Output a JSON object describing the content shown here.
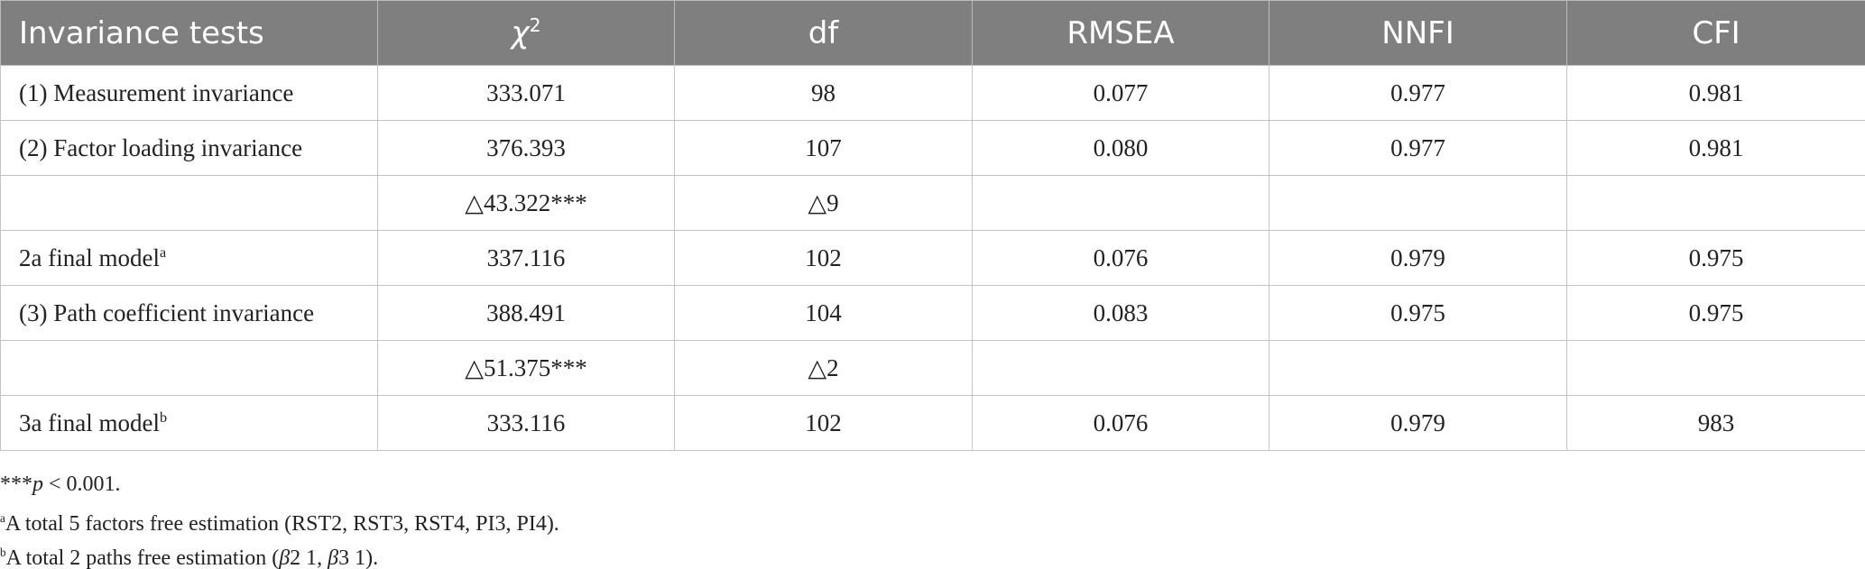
{
  "table": {
    "columns": [
      {
        "text": "Invariance tests"
      },
      {
        "italic": "χ",
        "sup": "2"
      },
      {
        "text": "df"
      },
      {
        "text": "RMSEA"
      },
      {
        "text": "NNFI"
      },
      {
        "text": "CFI"
      }
    ],
    "rows": [
      [
        {
          "text": "(1) Measurement invariance"
        },
        {
          "text": "333.071"
        },
        {
          "text": "98"
        },
        {
          "text": "0.077"
        },
        {
          "text": "0.977"
        },
        {
          "text": "0.981"
        }
      ],
      [
        {
          "text": "(2) Factor loading invariance"
        },
        {
          "text": "376.393"
        },
        {
          "text": "107"
        },
        {
          "text": "0.080"
        },
        {
          "text": "0.977"
        },
        {
          "text": "0.981"
        }
      ],
      [
        null,
        {
          "text": "△43.322***"
        },
        {
          "text": "△9"
        },
        null,
        null,
        null
      ],
      [
        {
          "text": "2a final model",
          "sup": "a"
        },
        {
          "text": "337.116"
        },
        {
          "text": "102"
        },
        {
          "text": "0.076"
        },
        {
          "text": "0.979"
        },
        {
          "text": "0.975"
        }
      ],
      [
        {
          "text": "(3) Path coefficient invariance"
        },
        {
          "text": "388.491"
        },
        {
          "text": "104"
        },
        {
          "text": "0.083"
        },
        {
          "text": "0.975"
        },
        {
          "text": "0.975"
        }
      ],
      [
        null,
        {
          "text": "△51.375***"
        },
        {
          "text": "△2"
        },
        null,
        null,
        null
      ],
      [
        {
          "text": "3a final model",
          "sup": "b"
        },
        {
          "text": "333.116"
        },
        {
          "text": "102"
        },
        {
          "text": "0.076"
        },
        {
          "text": "0.979"
        },
        {
          "text": "983"
        }
      ]
    ]
  },
  "footnotes": [
    [
      {
        "text": "***"
      },
      {
        "italic": "p"
      },
      {
        "text": " < 0.001."
      }
    ],
    [
      {
        "sup": "a"
      },
      {
        "text": "A total 5 factors free estimation (RST2, RST3, RST4, PI3, PI4)."
      }
    ],
    [
      {
        "sup": "b"
      },
      {
        "text": "A total 2 paths free estimation ("
      },
      {
        "italic": "β"
      },
      {
        "text": "2 1, "
      },
      {
        "italic": "β"
      },
      {
        "text": "3 1)."
      }
    ]
  ]
}
